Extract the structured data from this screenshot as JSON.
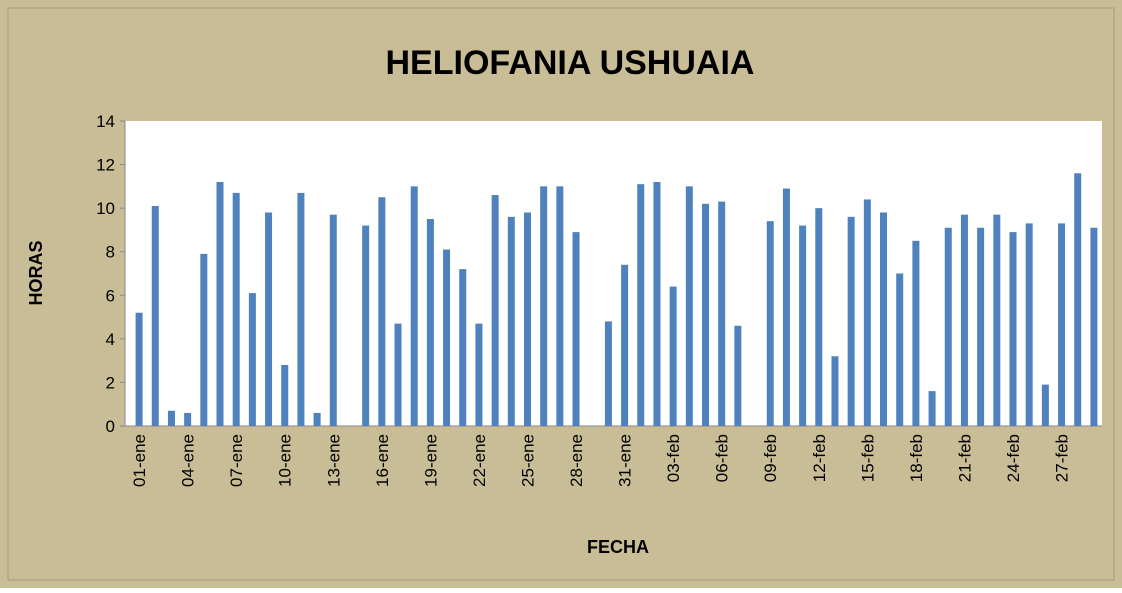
{
  "chart_data": {
    "type": "bar",
    "title": "HELIOFANIA USHUAIA",
    "x_label": "FECHA",
    "y_label": "HORAS",
    "categories": [
      "01-ene",
      null,
      null,
      "04-ene",
      null,
      null,
      "07-ene",
      null,
      null,
      "10-ene",
      null,
      null,
      "13-ene",
      null,
      null,
      "16-ene",
      null,
      null,
      "19-ene",
      null,
      null,
      "22-ene",
      null,
      null,
      "25-ene",
      null,
      null,
      "28-ene",
      null,
      null,
      "31-ene",
      null,
      null,
      "03-feb",
      null,
      null,
      "06-feb",
      null,
      null,
      "09-feb",
      null,
      null,
      "12-feb",
      null,
      null,
      "15-feb",
      null,
      null,
      "18-feb",
      null,
      null,
      "21-feb",
      null,
      null,
      "24-feb",
      null,
      null,
      "27-feb",
      null,
      null
    ],
    "values": [
      5.2,
      10.1,
      0.7,
      0.6,
      7.9,
      11.2,
      10.7,
      6.1,
      9.8,
      2.8,
      10.7,
      0.6,
      9.7,
      null,
      9.2,
      10.5,
      4.7,
      11.0,
      9.5,
      8.1,
      7.2,
      4.7,
      10.6,
      9.6,
      9.8,
      11.0,
      11.0,
      8.9,
      null,
      4.8,
      7.4,
      11.1,
      11.2,
      6.4,
      11.0,
      10.2,
      10.3,
      4.6,
      null,
      9.4,
      10.9,
      9.2,
      10.0,
      3.2,
      9.6,
      10.4,
      9.8,
      7.0,
      8.5,
      1.6,
      9.1,
      9.7,
      9.1,
      9.7,
      8.9,
      9.3,
      1.9,
      9.3,
      11.6,
      9.1
    ],
    "color": "#4f81bd",
    "ylim": [
      0,
      14
    ],
    "yticks": [
      0,
      2,
      4,
      6,
      8,
      10,
      12,
      14
    ],
    "grid": false
  }
}
